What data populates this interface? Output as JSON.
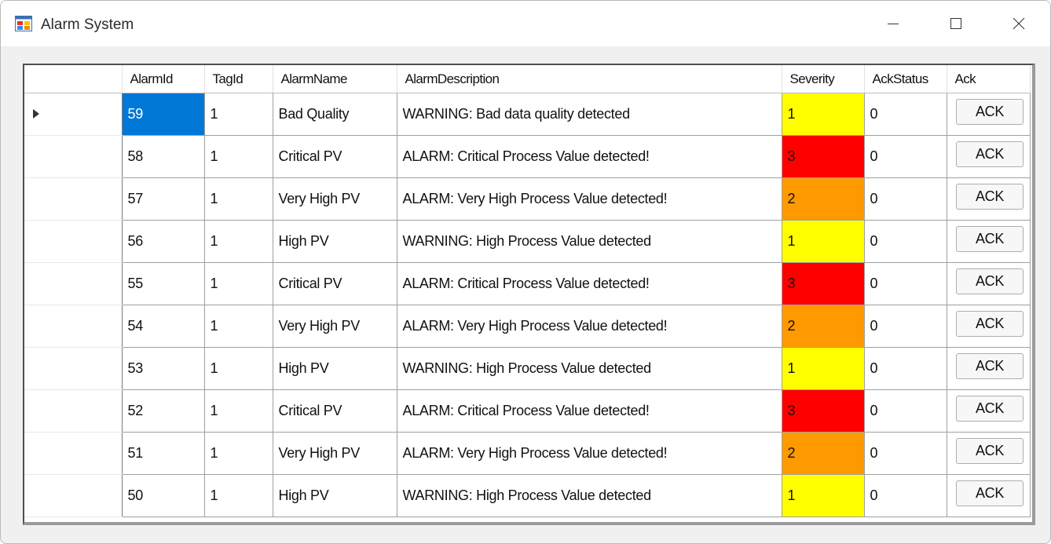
{
  "window": {
    "title": "Alarm System"
  },
  "icons": {
    "app": "app-window-icon",
    "minimize": "minimize-icon",
    "maximize": "maximize-icon",
    "close": "close-icon",
    "row_indicator": "current-row-arrow-icon"
  },
  "colors": {
    "selection": "#0078d7",
    "severity_1": "#ffff00",
    "severity_2": "#ff9900",
    "severity_3": "#ff0000"
  },
  "grid": {
    "columns": [
      "AlarmId",
      "TagId",
      "AlarmName",
      "AlarmDescription",
      "Severity",
      "AckStatus",
      "Ack"
    ],
    "rows": [
      {
        "AlarmId": "59",
        "TagId": "1",
        "AlarmName": "Bad Quality",
        "AlarmDescription": "WARNING: Bad data quality detected",
        "Severity": "1",
        "AckStatus": "0",
        "Ack": "ACK"
      },
      {
        "AlarmId": "58",
        "TagId": "1",
        "AlarmName": "Critical PV",
        "AlarmDescription": "ALARM: Critical Process Value detected!",
        "Severity": "3",
        "AckStatus": "0",
        "Ack": "ACK"
      },
      {
        "AlarmId": "57",
        "TagId": "1",
        "AlarmName": "Very High PV",
        "AlarmDescription": "ALARM: Very High Process Value detected!",
        "Severity": "2",
        "AckStatus": "0",
        "Ack": "ACK"
      },
      {
        "AlarmId": "56",
        "TagId": "1",
        "AlarmName": "High PV",
        "AlarmDescription": "WARNING: High Process Value detected",
        "Severity": "1",
        "AckStatus": "0",
        "Ack": "ACK"
      },
      {
        "AlarmId": "55",
        "TagId": "1",
        "AlarmName": "Critical PV",
        "AlarmDescription": "ALARM: Critical Process Value detected!",
        "Severity": "3",
        "AckStatus": "0",
        "Ack": "ACK"
      },
      {
        "AlarmId": "54",
        "TagId": "1",
        "AlarmName": "Very High PV",
        "AlarmDescription": "ALARM: Very High Process Value detected!",
        "Severity": "2",
        "AckStatus": "0",
        "Ack": "ACK"
      },
      {
        "AlarmId": "53",
        "TagId": "1",
        "AlarmName": "High PV",
        "AlarmDescription": "WARNING: High Process Value detected",
        "Severity": "1",
        "AckStatus": "0",
        "Ack": "ACK"
      },
      {
        "AlarmId": "52",
        "TagId": "1",
        "AlarmName": "Critical PV",
        "AlarmDescription": "ALARM: Critical Process Value detected!",
        "Severity": "3",
        "AckStatus": "0",
        "Ack": "ACK"
      },
      {
        "AlarmId": "51",
        "TagId": "1",
        "AlarmName": "Very High PV",
        "AlarmDescription": "ALARM: Very High Process Value detected!",
        "Severity": "2",
        "AckStatus": "0",
        "Ack": "ACK"
      },
      {
        "AlarmId": "50",
        "TagId": "1",
        "AlarmName": "High PV",
        "AlarmDescription": "WARNING: High Process Value detected",
        "Severity": "1",
        "AckStatus": "0",
        "Ack": "ACK"
      }
    ]
  }
}
